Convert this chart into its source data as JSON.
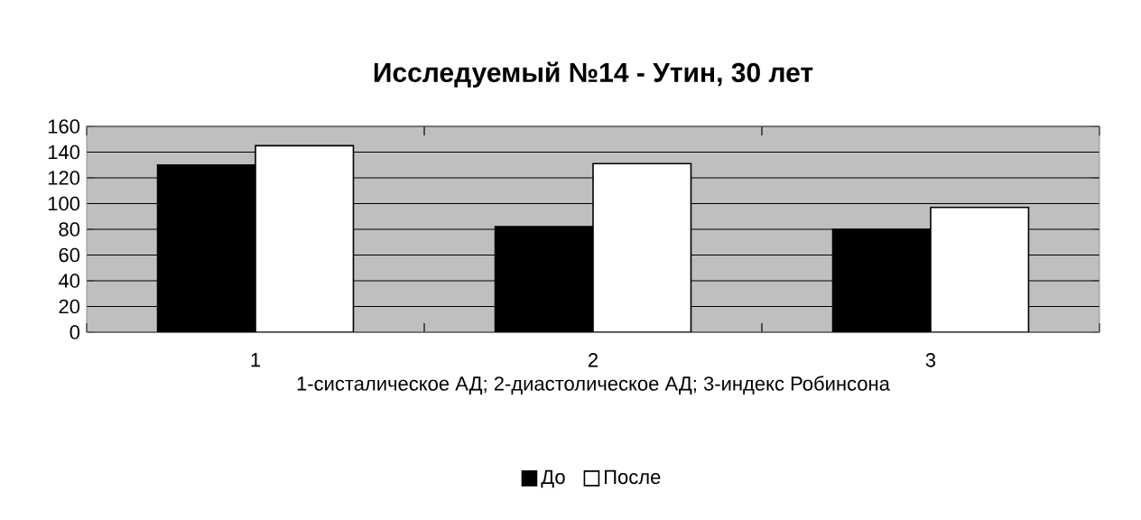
{
  "chart_data": {
    "type": "bar",
    "title": "Исследуемый №14 - Утин, 30 лет",
    "xlabel": "1-систалическое АД; 2-диастолическое АД; 3-индекс Робинсона",
    "categories": [
      "1",
      "2",
      "3"
    ],
    "series": [
      {
        "name": "До",
        "color": "#000000",
        "values": [
          130,
          82,
          80
        ]
      },
      {
        "name": "После",
        "color": "#ffffff",
        "values": [
          145,
          131,
          97
        ]
      }
    ],
    "ylim": [
      0,
      160
    ],
    "yticks": [
      0,
      20,
      40,
      60,
      80,
      100,
      120,
      140,
      160
    ],
    "grid": "y",
    "legend": "bottom"
  }
}
